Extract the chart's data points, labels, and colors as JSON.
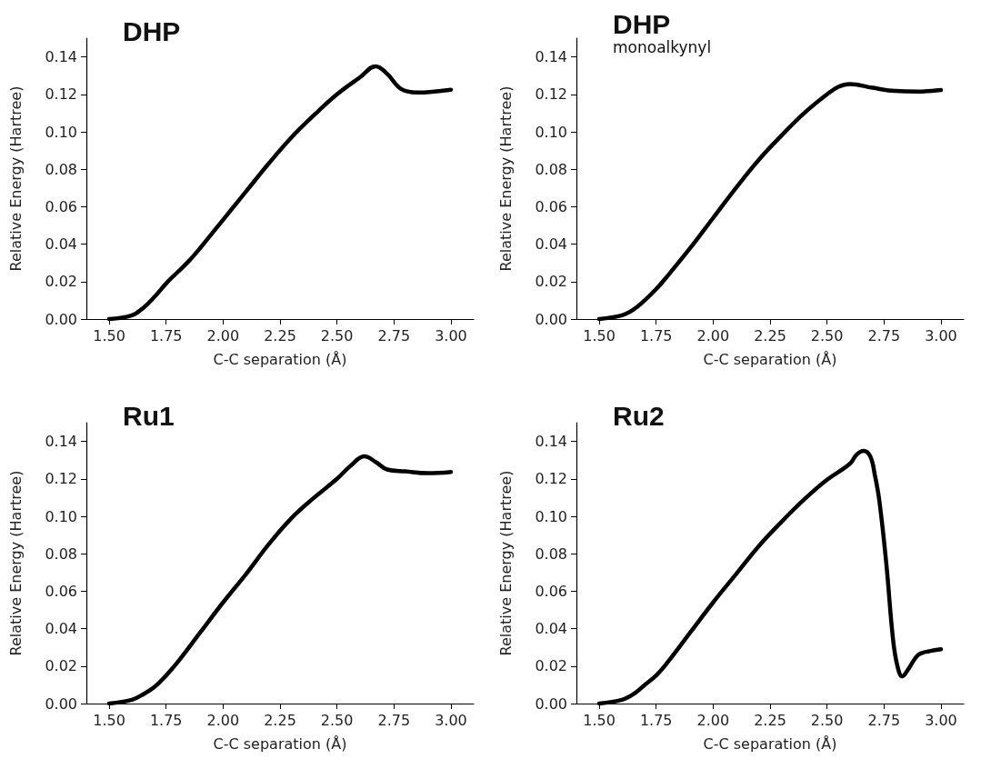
{
  "chart_data": [
    {
      "type": "line",
      "title": "DHP",
      "xlabel": "C-C separation (Å)",
      "ylabel": "Relative Energy (Hartree)",
      "xlim": [
        1.4,
        3.1
      ],
      "ylim": [
        0,
        0.15
      ],
      "xticks": [
        {
          "value": 1.5,
          "label": "1.50"
        },
        {
          "value": 1.75,
          "label": "1.75"
        },
        {
          "value": 2,
          "label": "2.00"
        },
        {
          "value": 2.25,
          "label": "2.25"
        },
        {
          "value": 2.5,
          "label": "2.50"
        },
        {
          "value": 2.75,
          "label": "2.75"
        },
        {
          "value": 3,
          "label": "3.00"
        }
      ],
      "yticks": [
        {
          "value": 0,
          "label": "0.00"
        },
        {
          "value": 0.02,
          "label": "0.02"
        },
        {
          "value": 0.04,
          "label": "0.04"
        },
        {
          "value": 0.06,
          "label": "0.06"
        },
        {
          "value": 0.08,
          "label": "0.08"
        },
        {
          "value": 0.1,
          "label": "0.10"
        },
        {
          "value": 0.12,
          "label": "0.12"
        },
        {
          "value": 0.14,
          "label": "0.14"
        }
      ],
      "grid": false,
      "marker": "none",
      "line_style": "solid",
      "series": [
        {
          "color": "#000000",
          "x": [
            1.5,
            1.6,
            1.65,
            1.7,
            1.75,
            1.8,
            1.85,
            1.9,
            2.0,
            2.1,
            2.2,
            2.3,
            2.4,
            2.5,
            2.6,
            2.67,
            2.72,
            2.78,
            2.85,
            3.0
          ],
          "values": [
            0,
            0.002,
            0.006,
            0.012,
            0.019,
            0.025,
            0.031,
            0.038,
            0.053,
            0.068,
            0.083,
            0.097,
            0.109,
            0.12,
            0.129,
            0.135,
            0.131,
            0.123,
            0.121,
            0.1225
          ]
        }
      ]
    },
    {
      "type": "line",
      "title": "DHP",
      "subtitle": "monoalkynyl",
      "xlabel": "C-C separation (Å)",
      "ylabel": "Relative Energy (Hartree)",
      "xlim": [
        1.4,
        3.1
      ],
      "ylim": [
        0,
        0.15
      ],
      "xticks": [
        {
          "value": 1.5,
          "label": "1.50"
        },
        {
          "value": 1.75,
          "label": "1.75"
        },
        {
          "value": 2,
          "label": "2.00"
        },
        {
          "value": 2.25,
          "label": "2.25"
        },
        {
          "value": 2.5,
          "label": "2.50"
        },
        {
          "value": 2.75,
          "label": "2.75"
        },
        {
          "value": 3,
          "label": "3.00"
        }
      ],
      "yticks": [
        {
          "value": 0,
          "label": "0.00"
        },
        {
          "value": 0.02,
          "label": "0.02"
        },
        {
          "value": 0.04,
          "label": "0.04"
        },
        {
          "value": 0.06,
          "label": "0.06"
        },
        {
          "value": 0.08,
          "label": "0.08"
        },
        {
          "value": 0.1,
          "label": "0.10"
        },
        {
          "value": 0.12,
          "label": "0.12"
        },
        {
          "value": 0.14,
          "label": "0.14"
        }
      ],
      "grid": false,
      "marker": "none",
      "line_style": "solid",
      "series": [
        {
          "color": "#000000",
          "x": [
            1.5,
            1.6,
            1.65,
            1.7,
            1.75,
            1.8,
            1.9,
            2.0,
            2.1,
            2.2,
            2.3,
            2.4,
            2.5,
            2.55,
            2.6,
            2.7,
            2.8,
            2.9,
            3.0
          ],
          "values": [
            0,
            0.002,
            0.005,
            0.01,
            0.016,
            0.023,
            0.038,
            0.054,
            0.07,
            0.085,
            0.098,
            0.11,
            0.12,
            0.124,
            0.1255,
            0.1235,
            0.1218,
            0.1215,
            0.1223
          ]
        }
      ]
    },
    {
      "type": "line",
      "title": "Ru1",
      "xlabel": "C-C separation (Å)",
      "ylabel": "Relative Energy (Hartree)",
      "xlim": [
        1.4,
        3.1
      ],
      "ylim": [
        0,
        0.15
      ],
      "xticks": [
        {
          "value": 1.5,
          "label": "1.50"
        },
        {
          "value": 1.75,
          "label": "1.75"
        },
        {
          "value": 2,
          "label": "2.00"
        },
        {
          "value": 2.25,
          "label": "2.25"
        },
        {
          "value": 2.5,
          "label": "2.50"
        },
        {
          "value": 2.75,
          "label": "2.75"
        },
        {
          "value": 3,
          "label": "3.00"
        }
      ],
      "yticks": [
        {
          "value": 0,
          "label": "0.00"
        },
        {
          "value": 0.02,
          "label": "0.02"
        },
        {
          "value": 0.04,
          "label": "0.04"
        },
        {
          "value": 0.06,
          "label": "0.06"
        },
        {
          "value": 0.08,
          "label": "0.08"
        },
        {
          "value": 0.1,
          "label": "0.10"
        },
        {
          "value": 0.12,
          "label": "0.12"
        },
        {
          "value": 0.14,
          "label": "0.14"
        }
      ],
      "grid": false,
      "marker": "none",
      "line_style": "solid",
      "series": [
        {
          "color": "#000000",
          "x": [
            1.5,
            1.6,
            1.65,
            1.7,
            1.75,
            1.8,
            1.9,
            2.0,
            2.1,
            2.2,
            2.3,
            2.4,
            2.5,
            2.56,
            2.62,
            2.67,
            2.72,
            2.8,
            2.9,
            3.0
          ],
          "values": [
            0,
            0.002,
            0.005,
            0.009,
            0.015,
            0.022,
            0.038,
            0.054,
            0.069,
            0.085,
            0.099,
            0.11,
            0.12,
            0.127,
            0.132,
            0.129,
            0.125,
            0.124,
            0.123,
            0.1237
          ]
        }
      ]
    },
    {
      "type": "line",
      "title": "Ru2",
      "xlabel": "C-C separation (Å)",
      "ylabel": "Relative Energy (Hartree)",
      "xlim": [
        1.4,
        3.1
      ],
      "ylim": [
        0,
        0.15
      ],
      "xticks": [
        {
          "value": 1.5,
          "label": "1.50"
        },
        {
          "value": 1.75,
          "label": "1.75"
        },
        {
          "value": 2,
          "label": "2.00"
        },
        {
          "value": 2.25,
          "label": "2.25"
        },
        {
          "value": 2.5,
          "label": "2.50"
        },
        {
          "value": 2.75,
          "label": "2.75"
        },
        {
          "value": 3,
          "label": "3.00"
        }
      ],
      "yticks": [
        {
          "value": 0,
          "label": "0.00"
        },
        {
          "value": 0.02,
          "label": "0.02"
        },
        {
          "value": 0.04,
          "label": "0.04"
        },
        {
          "value": 0.06,
          "label": "0.06"
        },
        {
          "value": 0.08,
          "label": "0.08"
        },
        {
          "value": 0.1,
          "label": "0.10"
        },
        {
          "value": 0.12,
          "label": "0.12"
        },
        {
          "value": 0.14,
          "label": "0.14"
        }
      ],
      "grid": false,
      "marker": "none",
      "line_style": "solid",
      "series": [
        {
          "color": "#000000",
          "x": [
            1.5,
            1.6,
            1.65,
            1.7,
            1.75,
            1.8,
            1.9,
            2.0,
            2.1,
            2.2,
            2.3,
            2.4,
            2.5,
            2.6,
            2.63,
            2.66,
            2.69,
            2.71,
            2.73,
            2.76,
            2.79,
            2.81,
            2.83,
            2.86,
            2.9,
            2.95,
            3.0
          ],
          "values": [
            0,
            0.002,
            0.005,
            0.01,
            0.015,
            0.022,
            0.038,
            0.054,
            0.069,
            0.084,
            0.097,
            0.109,
            0.1195,
            0.128,
            0.133,
            0.135,
            0.132,
            0.122,
            0.108,
            0.075,
            0.034,
            0.0195,
            0.0145,
            0.019,
            0.026,
            0.028,
            0.029
          ]
        }
      ]
    }
  ]
}
